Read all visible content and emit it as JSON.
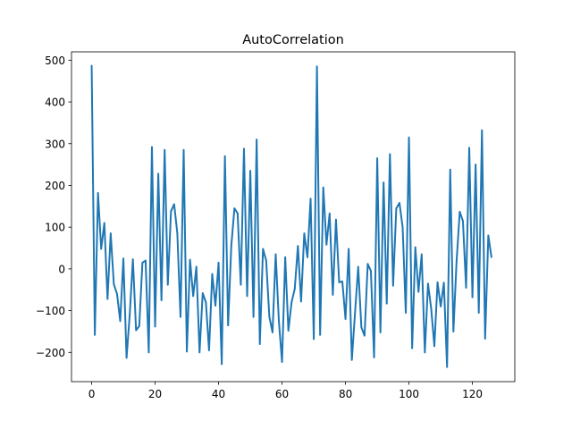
{
  "chart_data": {
    "type": "line",
    "title": "AutoCorrelation",
    "xlabel": "",
    "ylabel": "",
    "xlim": [
      -6.35,
      133.35
    ],
    "ylim": [
      -270,
      520
    ],
    "xticks": [
      0,
      20,
      40,
      60,
      80,
      100,
      120
    ],
    "yticks": [
      -200,
      -100,
      0,
      100,
      200,
      300,
      400,
      500
    ],
    "grid": false,
    "line_color": "#1f77b4",
    "series": [
      {
        "x": [
          0,
          1,
          2,
          3,
          4,
          5,
          6,
          7,
          8,
          9,
          10,
          11,
          12,
          13,
          14,
          15,
          16,
          17,
          18,
          19,
          20,
          21,
          22,
          23,
          24,
          25,
          26,
          27,
          28,
          29,
          30,
          31,
          32,
          33,
          34,
          35,
          36,
          37,
          38,
          39,
          40,
          41,
          42,
          43,
          44,
          45,
          46,
          47,
          48,
          49,
          50,
          51,
          52,
          53,
          54,
          55,
          56,
          57,
          58,
          59,
          60,
          61,
          62,
          63,
          64,
          65,
          66,
          67,
          68,
          69,
          70,
          71,
          72,
          73,
          74,
          75,
          76,
          77,
          78,
          79,
          80,
          81,
          82,
          83,
          84,
          85,
          86,
          87,
          88,
          89,
          90,
          91,
          92,
          93,
          94,
          95,
          96,
          97,
          98,
          99,
          100,
          101,
          102,
          103,
          104,
          105,
          106,
          107,
          108,
          109,
          110,
          111,
          112,
          113,
          114,
          115,
          116,
          117,
          118,
          119,
          120,
          121,
          122,
          123,
          124,
          125,
          126
        ],
        "values": [
          487,
          -158,
          182,
          48,
          110,
          -72,
          85,
          -37,
          -60,
          -125,
          25,
          -213,
          -110,
          23,
          -147,
          -137,
          15,
          20,
          -200,
          292,
          -138,
          228,
          -75,
          285,
          -38,
          138,
          155,
          85,
          -115,
          285,
          -198,
          22,
          -65,
          5,
          -200,
          -58,
          -80,
          -195,
          -12,
          -88,
          15,
          -228,
          270,
          -135,
          55,
          145,
          133,
          -38,
          288,
          -65,
          235,
          -115,
          310,
          -180,
          48,
          20,
          -115,
          -152,
          35,
          -125,
          -223,
          28,
          -148,
          -80,
          -48,
          55,
          -78,
          85,
          28,
          168,
          -168,
          485,
          -158,
          195,
          58,
          133,
          -62,
          118,
          -32,
          -30,
          -120,
          48,
          -218,
          -105,
          5,
          -140,
          -160,
          12,
          -5,
          -212,
          265,
          -152,
          207,
          -83,
          275,
          -40,
          145,
          158,
          100,
          -105,
          315,
          -190,
          52,
          -55,
          35,
          -200,
          -35,
          -95,
          -185,
          -32,
          -90,
          -33,
          -235,
          238,
          -150,
          18,
          137,
          115,
          -45,
          290,
          -68,
          250,
          -105,
          332,
          -167,
          80,
          28
        ]
      }
    ]
  }
}
